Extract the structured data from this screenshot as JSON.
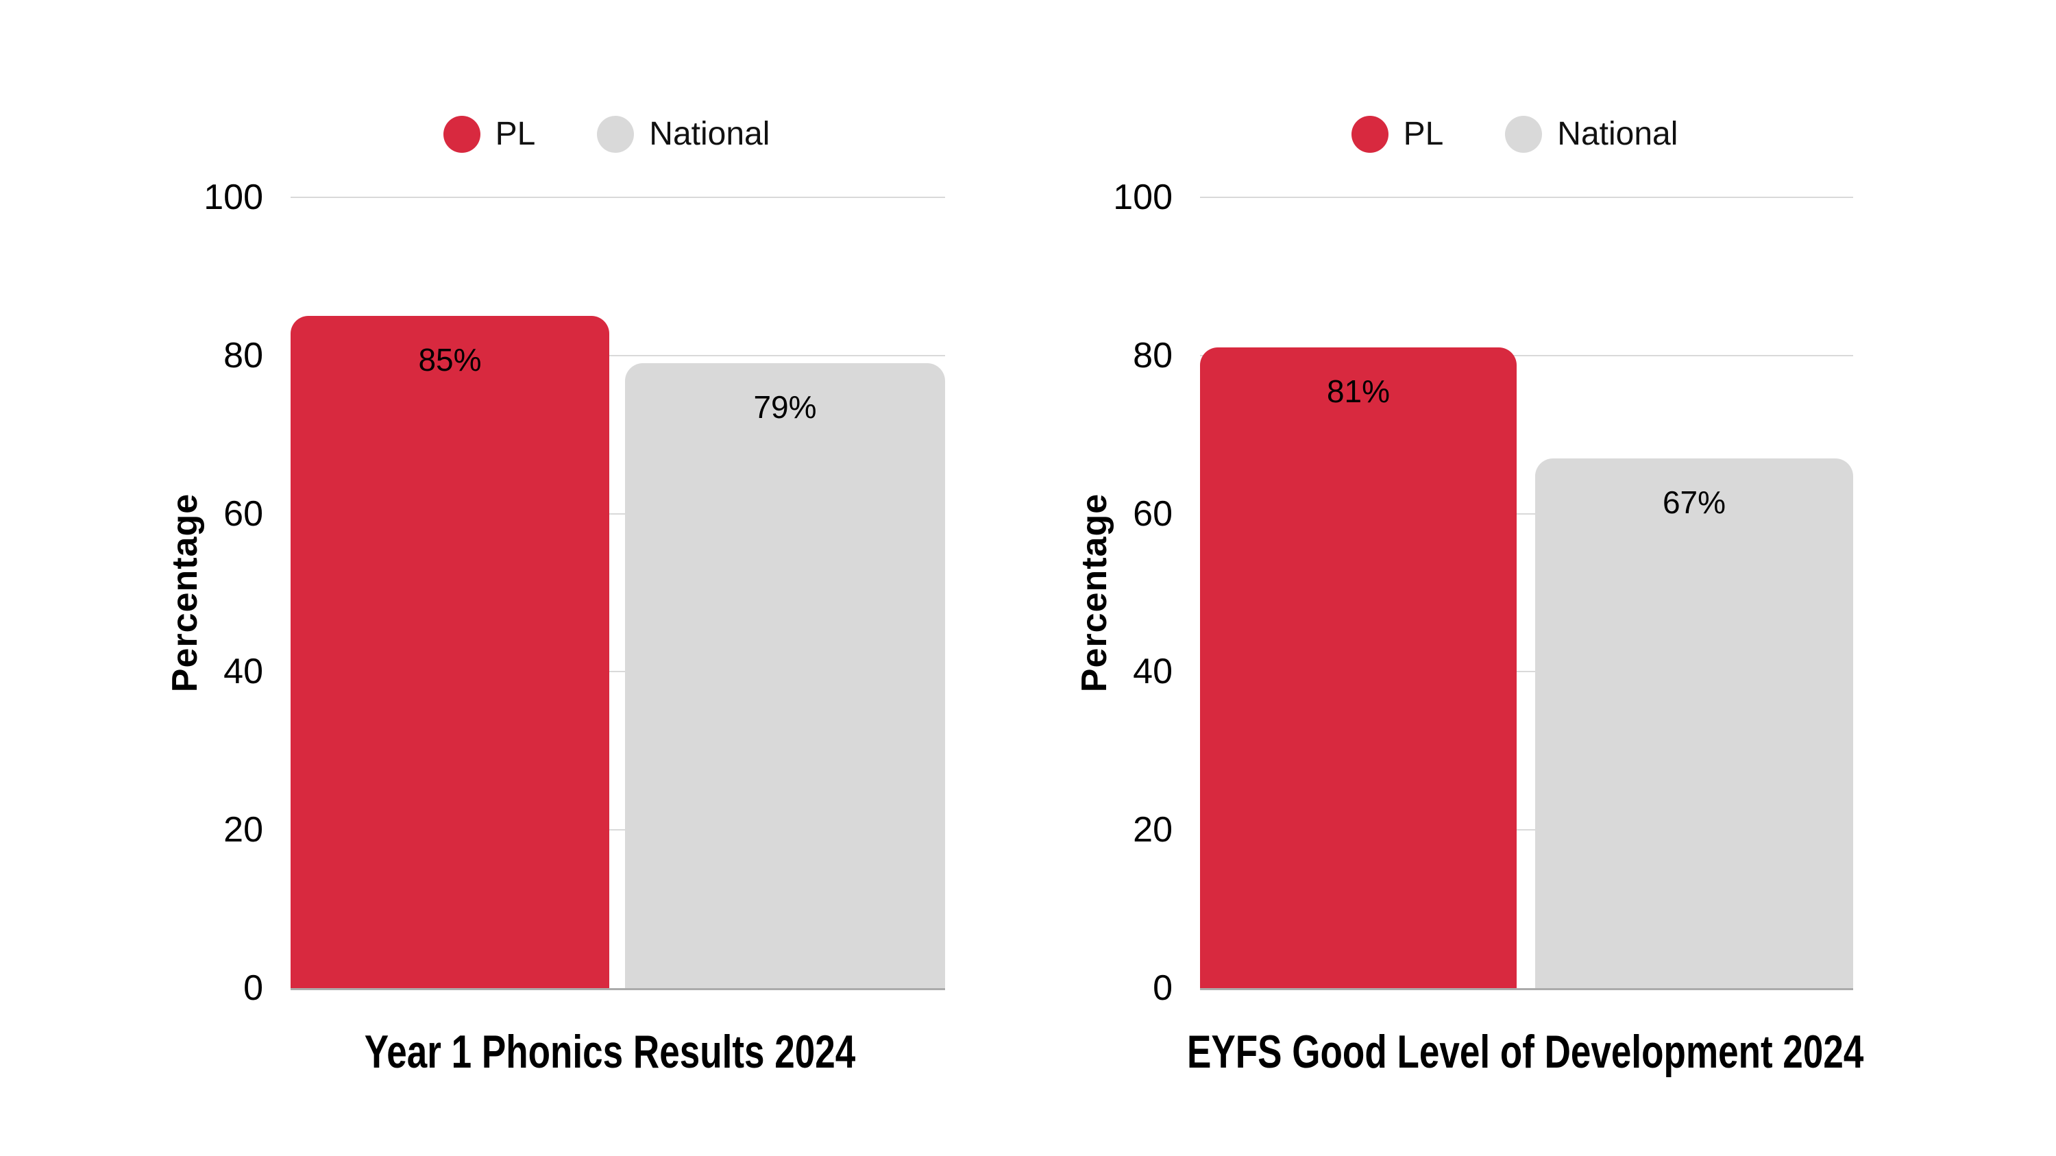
{
  "page": {
    "background": "#FFFFFF"
  },
  "colors": {
    "pl_red": "#D8293F",
    "national_gray": "#D9D9D9",
    "gridline": "#D9D9D9",
    "axis_line": "#ABABAB",
    "text": "#000000"
  },
  "legend": {
    "items": [
      {
        "label": "PL",
        "color": "#D8293F"
      },
      {
        "label": "National",
        "color": "#D9D9D9"
      }
    ]
  },
  "y_axis": {
    "label": "Percentage",
    "ticks": [
      0,
      20,
      40,
      60,
      80,
      100
    ],
    "max": 100
  },
  "chart_data": [
    {
      "type": "bar",
      "title": "Year 1 Phonics Results 2024",
      "categories": [
        "PL",
        "National"
      ],
      "values": [
        85,
        79
      ],
      "value_labels": [
        "85%",
        "79%"
      ],
      "series_colors": [
        "#D8293F",
        "#D9D9D9"
      ],
      "xlabel": "",
      "ylabel": "Percentage",
      "ylim": [
        0,
        100
      ],
      "grid": true,
      "legend_position": "top"
    },
    {
      "type": "bar",
      "title": "EYFS Good Level of Development 2024",
      "categories": [
        "PL",
        "National"
      ],
      "values": [
        81,
        67
      ],
      "value_labels": [
        "81%",
        "67%"
      ],
      "series_colors": [
        "#D8293F",
        "#D9D9D9"
      ],
      "xlabel": "",
      "ylabel": "Percentage",
      "ylim": [
        0,
        100
      ],
      "grid": true,
      "legend_position": "top"
    }
  ]
}
